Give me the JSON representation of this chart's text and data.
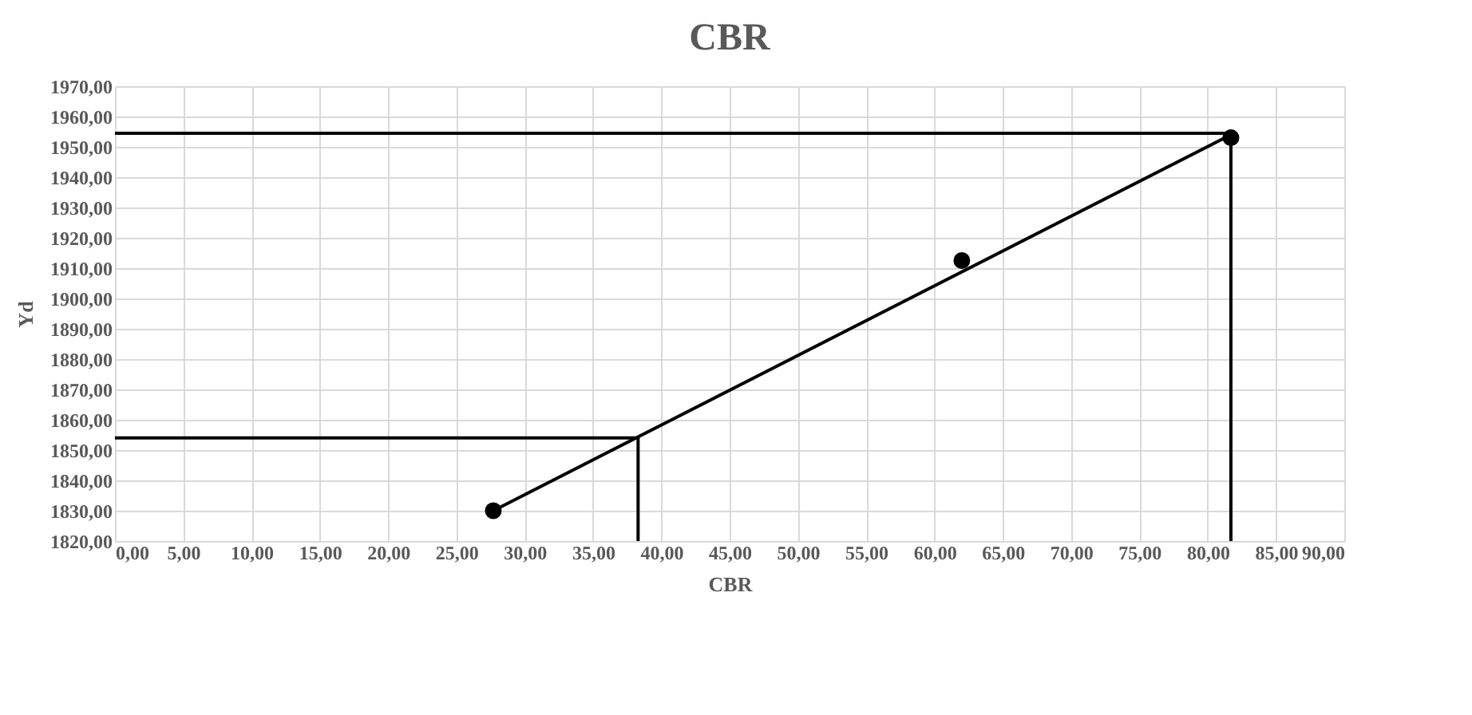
{
  "chart_data": {
    "type": "scatter",
    "title": "CBR",
    "xlabel": "CBR",
    "ylabel": "Yd",
    "grid": true,
    "legend": false,
    "marker": "circle",
    "xlim": [
      0,
      90
    ],
    "ylim": [
      1820,
      1970
    ],
    "xticks": [
      {
        "value": 0,
        "label": "0,00"
      },
      {
        "value": 5,
        "label": "5,00"
      },
      {
        "value": 10,
        "label": "10,00"
      },
      {
        "value": 15,
        "label": "15,00"
      },
      {
        "value": 20,
        "label": "20,00"
      },
      {
        "value": 25,
        "label": "25,00"
      },
      {
        "value": 30,
        "label": "30,00"
      },
      {
        "value": 35,
        "label": "35,00"
      },
      {
        "value": 40,
        "label": "40,00"
      },
      {
        "value": 45,
        "label": "45,00"
      },
      {
        "value": 50,
        "label": "50,00"
      },
      {
        "value": 55,
        "label": "55,00"
      },
      {
        "value": 60,
        "label": "60,00"
      },
      {
        "value": 65,
        "label": "65,00"
      },
      {
        "value": 70,
        "label": "70,00"
      },
      {
        "value": 75,
        "label": "75,00"
      },
      {
        "value": 80,
        "label": "80,00"
      },
      {
        "value": 85,
        "label": "85,00"
      },
      {
        "value": 90,
        "label": "90,00"
      }
    ],
    "yticks": [
      {
        "value": 1820,
        "label": "1820,00"
      },
      {
        "value": 1830,
        "label": "1830,00"
      },
      {
        "value": 1840,
        "label": "1840,00"
      },
      {
        "value": 1850,
        "label": "1850,00"
      },
      {
        "value": 1860,
        "label": "1860,00"
      },
      {
        "value": 1870,
        "label": "1870,00"
      },
      {
        "value": 1880,
        "label": "1880,00"
      },
      {
        "value": 1890,
        "label": "1890,00"
      },
      {
        "value": 1900,
        "label": "1900,00"
      },
      {
        "value": 1910,
        "label": "1910,00"
      },
      {
        "value": 1920,
        "label": "1920,00"
      },
      {
        "value": 1930,
        "label": "1930,00"
      },
      {
        "value": 1940,
        "label": "1940,00"
      },
      {
        "value": 1950,
        "label": "1950,00"
      },
      {
        "value": 1960,
        "label": "1960,00"
      },
      {
        "value": 1970,
        "label": "1970,00"
      }
    ],
    "series": [
      {
        "color": "#000000",
        "x": [
          27.7,
          62.0,
          81.7
        ],
        "values": [
          1830,
          1912.5,
          1953
        ]
      },
      {
        "type": "line",
        "color": "#000000",
        "marker": "none",
        "x": [
          27.7,
          81.7
        ],
        "values": [
          1830,
          1954
        ]
      },
      {
        "type": "line",
        "color": "#000000",
        "marker": "none",
        "x": [
          0,
          38.3,
          38.3
        ],
        "values": [
          1854,
          1854,
          1820
        ]
      },
      {
        "type": "line",
        "color": "#000000",
        "marker": "none",
        "x": [
          0,
          81.7,
          81.7
        ],
        "values": [
          1954.5,
          1954.5,
          1820
        ]
      }
    ]
  }
}
